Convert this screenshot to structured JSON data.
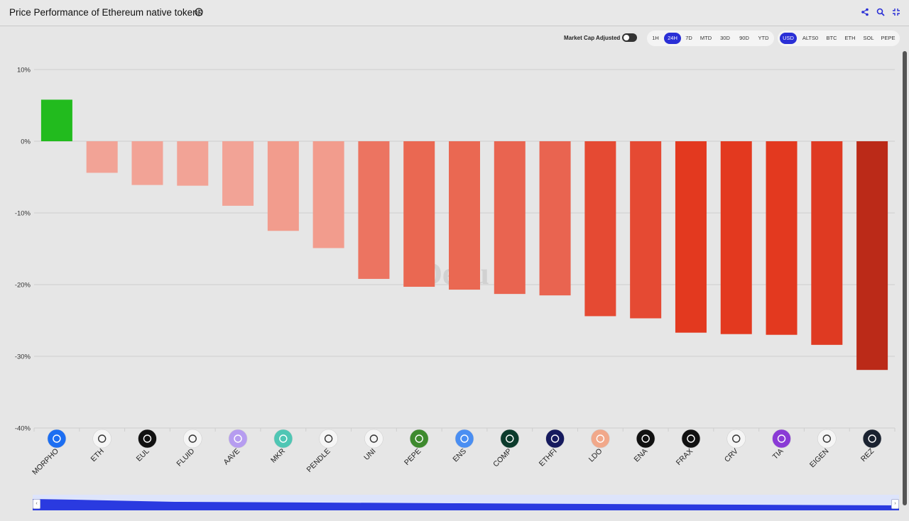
{
  "header": {
    "title": "Price Performance of Ethereum native tokens"
  },
  "controls": {
    "market_cap_label": "Market Cap Adjusted",
    "timeframes": [
      "1H",
      "24H",
      "7D",
      "MTD",
      "30D",
      "90D",
      "YTD"
    ],
    "active_timeframe": "24H",
    "currencies": [
      "USD",
      "ALTS0",
      "BTC",
      "ETH",
      "SOL",
      "PEPE"
    ],
    "active_currency": "USD"
  },
  "colors": {
    "positive": "#22bb1e",
    "accent": "#2a2fd6"
  },
  "chart_data": {
    "type": "bar",
    "title": "Price Performance of Ethereum native tokens",
    "xlabel": "",
    "ylabel": "",
    "ylim": [
      -40,
      10
    ],
    "yticks": [
      10,
      0,
      -10,
      -20,
      -30,
      -40
    ],
    "ytick_labels": [
      "10%",
      "0%",
      "-10%",
      "-20%",
      "-30%",
      "-40%"
    ],
    "grid": true,
    "watermark": "Dexu",
    "categories": [
      "MORPHO",
      "ETH",
      "EUL",
      "FLUID",
      "AAVE",
      "MKR",
      "PENDLE",
      "UNI",
      "PEPE",
      "ENS",
      "COMP",
      "ETHFI",
      "LDO",
      "ENA",
      "FRAX",
      "CRV",
      "TIA",
      "EIGEN",
      "REZ"
    ],
    "values": [
      5.8,
      -4.4,
      -6.1,
      -6.2,
      -9.0,
      -12.5,
      -14.9,
      -19.2,
      -20.3,
      -20.7,
      -21.3,
      -21.5,
      -24.4,
      -24.7,
      -26.7,
      -26.9,
      -27.0,
      -28.4,
      -31.9
    ],
    "bar_colors": [
      "#22bb1e",
      "#f2a396",
      "#f2a396",
      "#f2a396",
      "#f2a396",
      "#f29c8d",
      "#f29c8d",
      "#ec7461",
      "#ea6852",
      "#ea6852",
      "#e96450",
      "#e96450",
      "#e54a33",
      "#e54a33",
      "#e3391f",
      "#e3391f",
      "#e3391f",
      "#df3a22",
      "#bb2a18"
    ],
    "icon_colors": [
      "#1c6ef2",
      "#f5f5f5",
      "#111111",
      "#f5f5f5",
      "#b69cf0",
      "#4fc6b4",
      "#f5f5f5",
      "#f5f5f5",
      "#3e8a2e",
      "#4a8ef2",
      "#0c3b2c",
      "#161a5e",
      "#f1a88a",
      "#111111",
      "#111111",
      "#f5f5f5",
      "#8a3ad6",
      "#f5f5f5",
      "#1a2230"
    ]
  }
}
